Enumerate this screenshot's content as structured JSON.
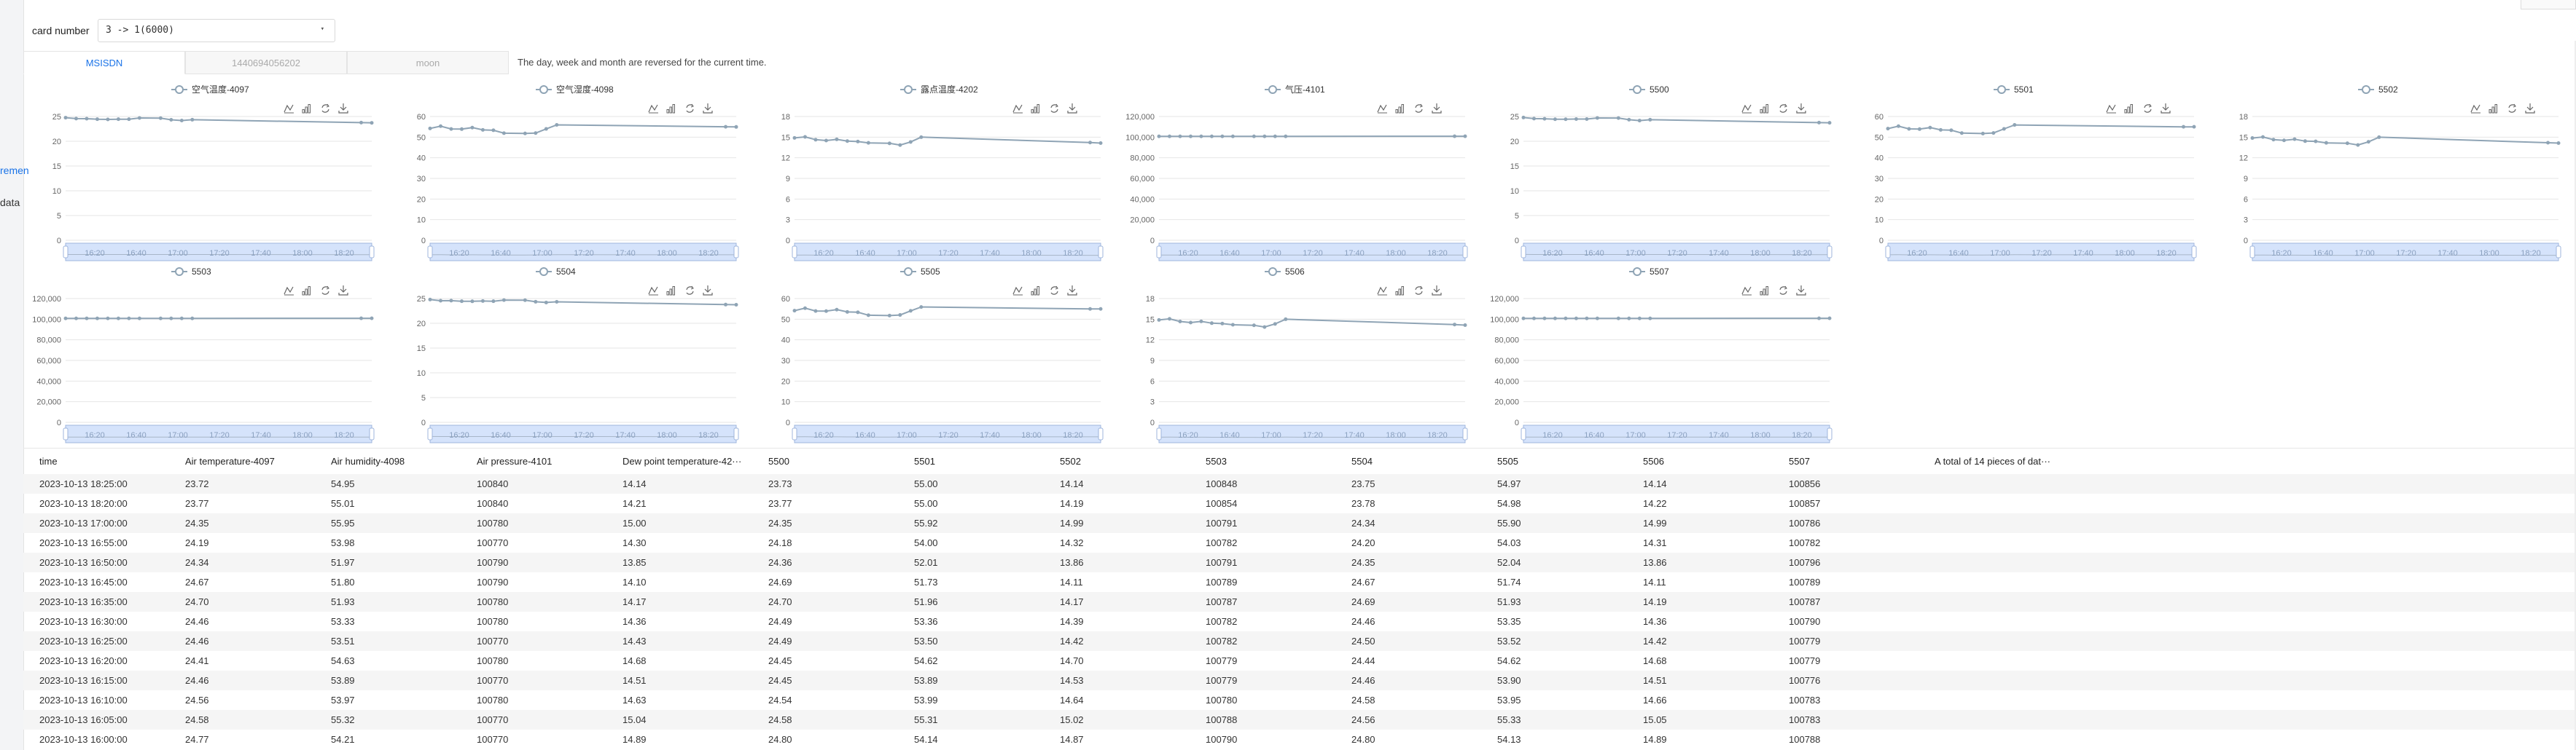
{
  "sidebar": {
    "items": [
      {
        "label": "remen"
      },
      {
        "label": "data"
      }
    ]
  },
  "header": {
    "card_label": "card number",
    "card_value": "3 -> 1(6000)",
    "dropdown_caret": "▾"
  },
  "tabs": [
    {
      "label": "MSISDN",
      "active": true
    },
    {
      "label": "1440694056202",
      "active": false
    },
    {
      "label": "moon",
      "active": false
    }
  ],
  "tip": "The day, week and month are reversed for the current time.",
  "toolbox_icons": [
    "line-chart-icon",
    "bar-chart-icon",
    "refresh-icon",
    "download-icon"
  ],
  "colors": {
    "series": "#8fa4b5",
    "zoom_fill": "#d5e3fb",
    "zoom_border": "#9fb6dd",
    "accent": "#1a73e8"
  },
  "chart_data": [
    {
      "type": "line",
      "title": "空气温度-4097",
      "legend": "空气温度-4097",
      "yticks": [
        "0",
        "5",
        "10",
        "15",
        "20",
        "25"
      ],
      "ylim": [
        0,
        25
      ],
      "x": [
        "16:00",
        "16:05",
        "16:10",
        "16:15",
        "16:20",
        "16:25",
        "16:30",
        "16:35",
        "16:45",
        "16:50",
        "16:55",
        "17:00",
        "18:20",
        "18:25"
      ],
      "xticks": [
        "16:20",
        "16:40",
        "17:00",
        "17:20",
        "17:40",
        "18:00",
        "18:20"
      ],
      "values": [
        24.77,
        24.58,
        24.56,
        24.46,
        24.41,
        24.46,
        24.46,
        24.7,
        24.67,
        24.34,
        24.19,
        24.35,
        23.77,
        23.72
      ]
    },
    {
      "type": "line",
      "title": "空气湿度-4098",
      "legend": "空气湿度-4098",
      "yticks": [
        "0",
        "10",
        "20",
        "30",
        "40",
        "50",
        "60"
      ],
      "ylim": [
        0,
        60
      ],
      "x": [
        "16:00",
        "16:05",
        "16:10",
        "16:15",
        "16:20",
        "16:25",
        "16:30",
        "16:35",
        "16:45",
        "16:50",
        "16:55",
        "17:00",
        "18:20",
        "18:25"
      ],
      "xticks": [
        "16:20",
        "16:40",
        "17:00",
        "17:20",
        "17:40",
        "18:00",
        "18:20"
      ],
      "values": [
        54.21,
        55.32,
        53.97,
        53.89,
        54.63,
        53.51,
        53.33,
        51.93,
        51.8,
        51.97,
        53.98,
        55.95,
        55.01,
        54.95
      ]
    },
    {
      "type": "line",
      "title": "露点温度-4202",
      "legend": "露点温度-4202",
      "yticks": [
        "0",
        "3",
        "6",
        "9",
        "12",
        "15",
        "18"
      ],
      "ylim": [
        0,
        18
      ],
      "x": [
        "16:00",
        "16:05",
        "16:10",
        "16:15",
        "16:20",
        "16:25",
        "16:30",
        "16:35",
        "16:45",
        "16:50",
        "16:55",
        "17:00",
        "18:20",
        "18:25"
      ],
      "xticks": [
        "16:20",
        "16:40",
        "17:00",
        "17:20",
        "17:40",
        "18:00",
        "18:20"
      ],
      "values": [
        14.89,
        15.04,
        14.63,
        14.51,
        14.68,
        14.43,
        14.36,
        14.17,
        14.1,
        13.85,
        14.3,
        15.0,
        14.21,
        14.14
      ]
    },
    {
      "type": "line",
      "title": "气压-4101",
      "legend": "气压-4101",
      "yticks": [
        "0",
        "20,000",
        "40,000",
        "60,000",
        "80,000",
        "100,000",
        "120,000"
      ],
      "ylim": [
        0,
        120000
      ],
      "x": [
        "16:00",
        "16:05",
        "16:10",
        "16:15",
        "16:20",
        "16:25",
        "16:30",
        "16:35",
        "16:45",
        "16:50",
        "16:55",
        "17:00",
        "18:20",
        "18:25"
      ],
      "xticks": [
        "16:20",
        "16:40",
        "17:00",
        "17:20",
        "17:40",
        "18:00",
        "18:20"
      ],
      "values": [
        100770,
        100770,
        100780,
        100770,
        100780,
        100770,
        100780,
        100780,
        100790,
        100790,
        100770,
        100780,
        100840,
        100840
      ]
    },
    {
      "type": "line",
      "title": "5500",
      "legend": "5500",
      "yticks": [
        "0",
        "5",
        "10",
        "15",
        "20",
        "25"
      ],
      "ylim": [
        0,
        25
      ],
      "x": [
        "16:00",
        "16:05",
        "16:10",
        "16:15",
        "16:20",
        "16:25",
        "16:30",
        "16:35",
        "16:45",
        "16:50",
        "16:55",
        "17:00",
        "18:20",
        "18:25"
      ],
      "xticks": [
        "16:20",
        "16:40",
        "17:00",
        "17:20",
        "17:40",
        "18:00",
        "18:20"
      ],
      "values": [
        24.8,
        24.58,
        24.54,
        24.45,
        24.45,
        24.49,
        24.49,
        24.7,
        24.69,
        24.36,
        24.18,
        24.35,
        23.77,
        23.73
      ]
    },
    {
      "type": "line",
      "title": "5501",
      "legend": "5501",
      "yticks": [
        "0",
        "10",
        "20",
        "30",
        "40",
        "50",
        "60"
      ],
      "ylim": [
        0,
        60
      ],
      "x": [
        "16:00",
        "16:05",
        "16:10",
        "16:15",
        "16:20",
        "16:25",
        "16:30",
        "16:35",
        "16:45",
        "16:50",
        "16:55",
        "17:00",
        "18:20",
        "18:25"
      ],
      "xticks": [
        "16:20",
        "16:40",
        "17:00",
        "17:20",
        "17:40",
        "18:00",
        "18:20"
      ],
      "values": [
        54.14,
        55.31,
        53.99,
        53.89,
        54.62,
        53.5,
        53.36,
        51.96,
        51.73,
        52.01,
        54.0,
        55.92,
        55.0,
        55.0
      ]
    },
    {
      "type": "line",
      "title": "5502",
      "legend": "5502",
      "yticks": [
        "0",
        "3",
        "6",
        "9",
        "12",
        "15",
        "18"
      ],
      "ylim": [
        0,
        18
      ],
      "x": [
        "16:00",
        "16:05",
        "16:10",
        "16:15",
        "16:20",
        "16:25",
        "16:30",
        "16:35",
        "16:45",
        "16:50",
        "16:55",
        "17:00",
        "18:20",
        "18:25"
      ],
      "xticks": [
        "16:20",
        "16:40",
        "17:00",
        "17:20",
        "17:40",
        "18:00",
        "18:20"
      ],
      "values": [
        14.87,
        15.02,
        14.64,
        14.53,
        14.7,
        14.42,
        14.39,
        14.17,
        14.11,
        13.86,
        14.32,
        14.99,
        14.19,
        14.14
      ]
    },
    {
      "type": "line",
      "title": "5503",
      "legend": "5503",
      "yticks": [
        "0",
        "20,000",
        "40,000",
        "60,000",
        "80,000",
        "100,000",
        "120,000"
      ],
      "ylim": [
        0,
        120000
      ],
      "x": [
        "16:00",
        "16:05",
        "16:10",
        "16:15",
        "16:20",
        "16:25",
        "16:30",
        "16:35",
        "16:45",
        "16:50",
        "16:55",
        "17:00",
        "18:20",
        "18:25"
      ],
      "xticks": [
        "16:20",
        "16:40",
        "17:00",
        "17:20",
        "17:40",
        "18:00",
        "18:20"
      ],
      "values": [
        100790,
        100788,
        100780,
        100779,
        100779,
        100782,
        100782,
        100787,
        100789,
        100791,
        100782,
        100791,
        100854,
        100848
      ]
    },
    {
      "type": "line",
      "title": "5504",
      "legend": "5504",
      "yticks": [
        "0",
        "5",
        "10",
        "15",
        "20",
        "25"
      ],
      "ylim": [
        0,
        25
      ],
      "x": [
        "16:00",
        "16:05",
        "16:10",
        "16:15",
        "16:20",
        "16:25",
        "16:30",
        "16:35",
        "16:45",
        "16:50",
        "16:55",
        "17:00",
        "18:20",
        "18:25"
      ],
      "xticks": [
        "16:20",
        "16:40",
        "17:00",
        "17:20",
        "17:40",
        "18:00",
        "18:20"
      ],
      "values": [
        24.8,
        24.56,
        24.58,
        24.46,
        24.44,
        24.5,
        24.46,
        24.69,
        24.67,
        24.35,
        24.2,
        24.34,
        23.78,
        23.75
      ]
    },
    {
      "type": "line",
      "title": "5505",
      "legend": "5505",
      "yticks": [
        "0",
        "10",
        "20",
        "30",
        "40",
        "50",
        "60"
      ],
      "ylim": [
        0,
        60
      ],
      "x": [
        "16:00",
        "16:05",
        "16:10",
        "16:15",
        "16:20",
        "16:25",
        "16:30",
        "16:35",
        "16:45",
        "16:50",
        "16:55",
        "17:00",
        "18:20",
        "18:25"
      ],
      "xticks": [
        "16:20",
        "16:40",
        "17:00",
        "17:20",
        "17:40",
        "18:00",
        "18:20"
      ],
      "values": [
        54.13,
        55.33,
        53.95,
        53.9,
        54.62,
        53.52,
        53.35,
        51.93,
        51.74,
        52.04,
        54.03,
        55.9,
        54.98,
        54.97
      ]
    },
    {
      "type": "line",
      "title": "5506",
      "legend": "5506",
      "yticks": [
        "0",
        "3",
        "6",
        "9",
        "12",
        "15",
        "18"
      ],
      "ylim": [
        0,
        18
      ],
      "x": [
        "16:00",
        "16:05",
        "16:10",
        "16:15",
        "16:20",
        "16:25",
        "16:30",
        "16:35",
        "16:45",
        "16:50",
        "16:55",
        "17:00",
        "18:20",
        "18:25"
      ],
      "xticks": [
        "16:20",
        "16:40",
        "17:00",
        "17:20",
        "17:40",
        "18:00",
        "18:20"
      ],
      "values": [
        14.89,
        15.05,
        14.66,
        14.51,
        14.68,
        14.42,
        14.36,
        14.19,
        14.11,
        13.86,
        14.31,
        14.99,
        14.22,
        14.14
      ]
    },
    {
      "type": "line",
      "title": "5507",
      "legend": "5507",
      "yticks": [
        "0",
        "20,000",
        "40,000",
        "60,000",
        "80,000",
        "100,000",
        "120,000"
      ],
      "ylim": [
        0,
        120000
      ],
      "x": [
        "16:00",
        "16:05",
        "16:10",
        "16:15",
        "16:20",
        "16:25",
        "16:30",
        "16:35",
        "16:45",
        "16:50",
        "16:55",
        "17:00",
        "18:20",
        "18:25"
      ],
      "xticks": [
        "16:20",
        "16:40",
        "17:00",
        "17:20",
        "17:40",
        "18:00",
        "18:20"
      ],
      "values": [
        100788,
        100783,
        100783,
        100776,
        100779,
        100779,
        100790,
        100787,
        100789,
        100796,
        100782,
        100786,
        100857,
        100856
      ]
    }
  ],
  "table": {
    "columns": [
      "time",
      "Air temperature-4097",
      "Air humidity-4098",
      "Air pressure-4101",
      "Dew point temperature-42···",
      "5500",
      "5501",
      "5502",
      "5503",
      "5504",
      "5505",
      "5506",
      "5507",
      "A total of 14 pieces of dat···"
    ],
    "rows": [
      [
        "2023-10-13 18:25:00",
        "23.72",
        "54.95",
        "100840",
        "14.14",
        "23.73",
        "55.00",
        "14.14",
        "100848",
        "23.75",
        "54.97",
        "14.14",
        "100856"
      ],
      [
        "2023-10-13 18:20:00",
        "23.77",
        "55.01",
        "100840",
        "14.21",
        "23.77",
        "55.00",
        "14.19",
        "100854",
        "23.78",
        "54.98",
        "14.22",
        "100857"
      ],
      [
        "2023-10-13 17:00:00",
        "24.35",
        "55.95",
        "100780",
        "15.00",
        "24.35",
        "55.92",
        "14.99",
        "100791",
        "24.34",
        "55.90",
        "14.99",
        "100786"
      ],
      [
        "2023-10-13 16:55:00",
        "24.19",
        "53.98",
        "100770",
        "14.30",
        "24.18",
        "54.00",
        "14.32",
        "100782",
        "24.20",
        "54.03",
        "14.31",
        "100782"
      ],
      [
        "2023-10-13 16:50:00",
        "24.34",
        "51.97",
        "100790",
        "13.85",
        "24.36",
        "52.01",
        "13.86",
        "100791",
        "24.35",
        "52.04",
        "13.86",
        "100796"
      ],
      [
        "2023-10-13 16:45:00",
        "24.67",
        "51.80",
        "100790",
        "14.10",
        "24.69",
        "51.73",
        "14.11",
        "100789",
        "24.67",
        "51.74",
        "14.11",
        "100789"
      ],
      [
        "2023-10-13 16:35:00",
        "24.70",
        "51.93",
        "100780",
        "14.17",
        "24.70",
        "51.96",
        "14.17",
        "100787",
        "24.69",
        "51.93",
        "14.19",
        "100787"
      ],
      [
        "2023-10-13 16:30:00",
        "24.46",
        "53.33",
        "100780",
        "14.36",
        "24.49",
        "53.36",
        "14.39",
        "100782",
        "24.46",
        "53.35",
        "14.36",
        "100790"
      ],
      [
        "2023-10-13 16:25:00",
        "24.46",
        "53.51",
        "100770",
        "14.43",
        "24.49",
        "53.50",
        "14.42",
        "100782",
        "24.50",
        "53.52",
        "14.42",
        "100779"
      ],
      [
        "2023-10-13 16:20:00",
        "24.41",
        "54.63",
        "100780",
        "14.68",
        "24.45",
        "54.62",
        "14.70",
        "100779",
        "24.44",
        "54.62",
        "14.68",
        "100779"
      ],
      [
        "2023-10-13 16:15:00",
        "24.46",
        "53.89",
        "100770",
        "14.51",
        "24.45",
        "53.89",
        "14.53",
        "100779",
        "24.46",
        "53.90",
        "14.51",
        "100776"
      ],
      [
        "2023-10-13 16:10:00",
        "24.56",
        "53.97",
        "100780",
        "14.63",
        "24.54",
        "53.99",
        "14.64",
        "100780",
        "24.58",
        "53.95",
        "14.66",
        "100783"
      ],
      [
        "2023-10-13 16:05:00",
        "24.58",
        "55.32",
        "100770",
        "15.04",
        "24.58",
        "55.31",
        "15.02",
        "100788",
        "24.56",
        "55.33",
        "15.05",
        "100783"
      ],
      [
        "2023-10-13 16:00:00",
        "24.77",
        "54.21",
        "100770",
        "14.89",
        "24.80",
        "54.14",
        "14.87",
        "100790",
        "24.80",
        "54.13",
        "14.89",
        "100788"
      ]
    ]
  }
}
